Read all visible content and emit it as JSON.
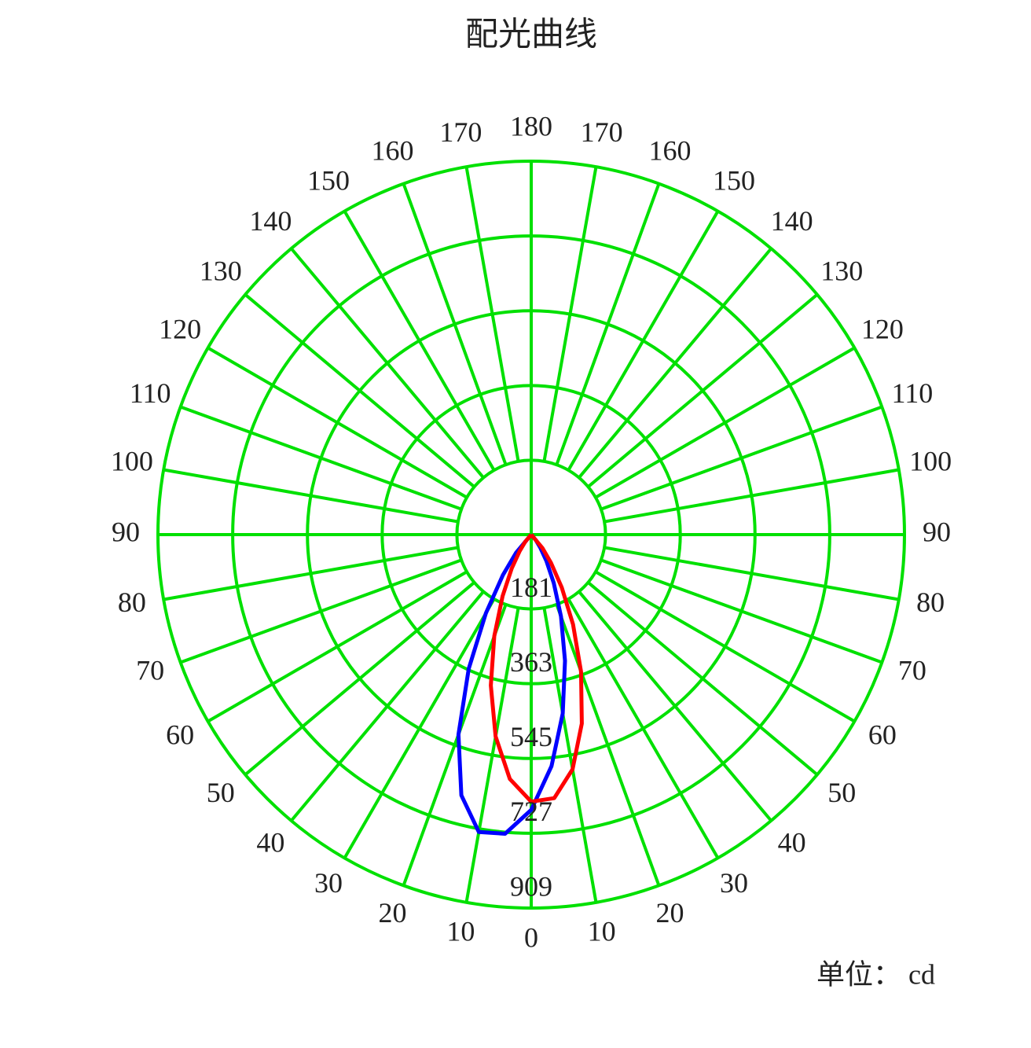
{
  "chart_data": {
    "type": "polar",
    "title": "配光曲线",
    "unit_label": "单位： cd",
    "x": [
      -90,
      -40,
      -35,
      -30,
      -25,
      -20,
      -15,
      -10,
      -5,
      0,
      5,
      10,
      15,
      20,
      25,
      30,
      35,
      40,
      90
    ],
    "series": [
      {
        "color": "#0000ff",
        "values": [
          0,
          57,
          120,
          221,
          360,
          518,
          657,
          735,
          731,
          670,
          566,
          442,
          318,
          212,
          130,
          74,
          38,
          18,
          0
        ]
      },
      {
        "color": "#ff0000",
        "values": [
          0,
          23,
          49,
          95,
          165,
          263,
          380,
          499,
          597,
          650,
          644,
          580,
          476,
          355,
          241,
          149,
          84,
          43,
          0
        ]
      }
    ],
    "rlim": [
      0,
      909
    ],
    "rticks": [
      181,
      363,
      545,
      727,
      909
    ],
    "thetaticks": [
      0,
      10,
      20,
      30,
      40,
      50,
      60,
      70,
      80,
      90,
      100,
      110,
      120,
      130,
      140,
      150,
      160,
      170,
      180
    ],
    "grid_color": "#00e000",
    "grid": true
  }
}
